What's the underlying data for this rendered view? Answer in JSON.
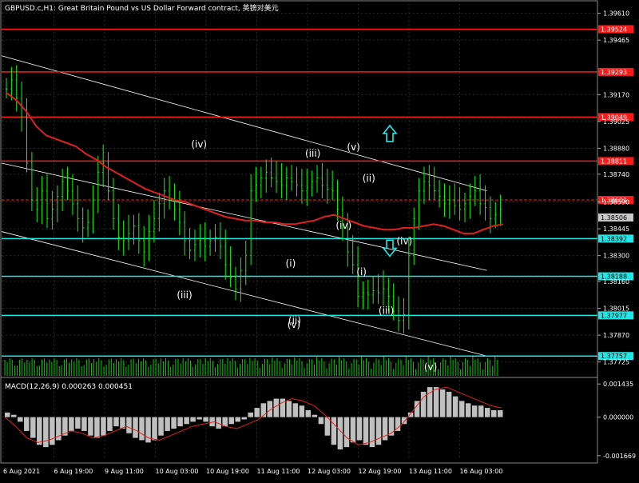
{
  "title": "GBPUSD.c,H1:  Great Britain Pound vs US Dollar Forward contract, 英镑对美元",
  "indicator_label": "MACD(12,26,9) 0.000263 0.000451",
  "colors": {
    "background": "#000000",
    "grid": "#2a2a2a",
    "axis_text": "#ffffff",
    "candle": "#00ff00",
    "ma": "#e02020",
    "channel": "#ffffff",
    "red_level": "#ff1a1a",
    "cyan_level": "#22e6e6",
    "macd_hist": "#c0c0c0",
    "macd_signal": "#e02020",
    "volume": "#00cc00",
    "current_price": "#c8c8c8"
  },
  "chart_data": {
    "type": "candlestick",
    "symbol": "GBPUSD.c",
    "timeframe": "H1",
    "ylim": [
      1.3765,
      1.3966
    ],
    "price_ticks": [
      "1.39610",
      "1.39465",
      "1.39170",
      "1.39025",
      "1.38880",
      "1.38740",
      "1.38590",
      "1.38445",
      "1.38300",
      "1.38160",
      "1.38015",
      "1.37870",
      "1.37725"
    ],
    "x_labels": [
      "6 Aug 2021",
      "6 Aug 19:00",
      "9 Aug 11:00",
      "10 Aug 03:00",
      "10 Aug 19:00",
      "11 Aug 11:00",
      "12 Aug 03:00",
      "12 Aug 19:00",
      "13 Aug 11:00",
      "16 Aug 03:00"
    ],
    "levels": [
      {
        "price": 1.39524,
        "label": "1.39524",
        "color": "red"
      },
      {
        "price": 1.39293,
        "label": "1.39293",
        "color": "red"
      },
      {
        "price": 1.39049,
        "label": "1.39049",
        "color": "red"
      },
      {
        "price": 1.38811,
        "label": "1.38811",
        "color": "red"
      },
      {
        "price": 1.38601,
        "label": "1.38601",
        "color": "red",
        "dashed": true
      },
      {
        "price": 1.38392,
        "label": "1.38392",
        "color": "cyan"
      },
      {
        "price": 1.38188,
        "label": "1.38188",
        "color": "cyan"
      },
      {
        "price": 1.37977,
        "label": "1.37977",
        "color": "cyan"
      },
      {
        "price": 1.37757,
        "label": "1.37757",
        "color": "cyan"
      }
    ],
    "current_price": {
      "price": 1.38506,
      "label": "1.38506"
    },
    "closes": [
      1.392,
      1.3925,
      1.3915,
      1.3905,
      1.388,
      1.386,
      1.3855,
      1.3865,
      1.385,
      1.3855,
      1.3862,
      1.387,
      1.3865,
      1.3858,
      1.385,
      1.3845,
      1.3848,
      1.386,
      1.3875,
      1.388,
      1.3865,
      1.385,
      1.384,
      1.3838,
      1.3842,
      1.3846,
      1.3838,
      1.3832,
      1.3843,
      1.385,
      1.3858,
      1.3865,
      1.386,
      1.3855,
      1.3848,
      1.3838,
      1.3833,
      1.3836,
      1.3838,
      1.3835,
      1.3838,
      1.384,
      1.3835,
      1.3825,
      1.3818,
      1.3812,
      1.3822,
      1.383,
      1.3865,
      1.3868,
      1.3872,
      1.3875,
      1.3872,
      1.387,
      1.3868,
      1.3872,
      1.387,
      1.3868,
      1.3865,
      1.3867,
      1.387,
      1.3872,
      1.3868,
      1.3866,
      1.3865,
      1.3855,
      1.3845,
      1.3832,
      1.3825,
      1.3808,
      1.381,
      1.3809,
      1.3811,
      1.381,
      1.3812,
      1.3808,
      1.38,
      1.3795,
      1.3798,
      1.383,
      1.385,
      1.3865,
      1.387,
      1.3868,
      1.3865,
      1.3862,
      1.3858,
      1.386,
      1.3857,
      1.3855,
      1.3858,
      1.3862,
      1.3865,
      1.3858,
      1.3856,
      1.385,
      1.3852,
      1.3855
    ],
    "ma": [
      1.3918,
      1.3914,
      1.3908,
      1.39,
      1.3895,
      1.3893,
      1.3891,
      1.3889,
      1.3885,
      1.3882,
      1.3878,
      1.3875,
      1.3872,
      1.3869,
      1.3866,
      1.3864,
      1.3862,
      1.386,
      1.3859,
      1.3857,
      1.3855,
      1.3853,
      1.3851,
      1.385,
      1.3849,
      1.3849,
      1.3848,
      1.3848,
      1.3847,
      1.3847,
      1.3848,
      1.3849,
      1.3851,
      1.3852,
      1.385,
      1.3848,
      1.3846,
      1.3845,
      1.3844,
      1.3844,
      1.3845,
      1.3845,
      1.3846,
      1.3847,
      1.3846,
      1.3844,
      1.3842,
      1.3842,
      1.3844,
      1.3846,
      1.3847
    ],
    "channel_lines": [
      {
        "x0": 0.0,
        "y0": 1.3938,
        "x1": 0.97,
        "y1": 1.3865
      },
      {
        "x0": 0.0,
        "y0": 1.388,
        "x1": 0.97,
        "y1": 1.3822
      },
      {
        "x0": 0.0,
        "y0": 1.3843,
        "x1": 0.97,
        "y1": 1.37757
      }
    ],
    "wave_labels": [
      {
        "text": "(iv)",
        "x": 0.545,
        "y": 1.38885
      },
      {
        "text": "(iii)",
        "x": 0.505,
        "y": 1.3807
      },
      {
        "text": "(iii)",
        "x": 0.858,
        "y": 1.38835
      },
      {
        "text": "(v)",
        "x": 0.97,
        "y": 1.3887
      },
      {
        "text": "(ii)",
        "x": 1.012,
        "y": 1.387
      },
      {
        "text": "(iv)",
        "x": 0.943,
        "y": 1.38445
      },
      {
        "text": "(i)",
        "x": 0.992,
        "y": 1.38195
      },
      {
        "text": "(i)",
        "x": 0.797,
        "y": 1.3824
      },
      {
        "text": "(ii)",
        "x": 0.808,
        "y": 1.3793
      },
      {
        "text": "(v)",
        "x": 0.806,
        "y": 1.3791
      },
      {
        "text": "(iv)",
        "x": 1.11,
        "y": 1.3836
      },
      {
        "text": "(iii)",
        "x": 1.06,
        "y": 1.37985
      },
      {
        "text": "(v)",
        "x": 1.182,
        "y": 1.3768
      }
    ],
    "arrows": [
      {
        "direction": "up",
        "x": 1.044,
        "y": 1.3896
      },
      {
        "direction": "down",
        "x": 1.044,
        "y": 1.3834
      }
    ],
    "macd": {
      "name": "MACD(12,26,9)",
      "main": 0.000263,
      "signal": 0.000451,
      "ylim": [
        -0.00185,
        0.00165
      ],
      "ticks": [
        "0.001435",
        "0.000000",
        "-0.001669"
      ],
      "histogram": [
        0.0002,
        0.0001,
        -0.0002,
        -0.0006,
        -0.0009,
        -0.0012,
        -0.0013,
        -0.0012,
        -0.001,
        -0.0008,
        -0.0006,
        -0.0005,
        -0.0006,
        -0.0008,
        -0.0009,
        -0.0008,
        -0.0006,
        -0.0004,
        -0.0005,
        -0.0007,
        -0.0009,
        -0.001,
        -0.0011,
        -0.001,
        -0.0008,
        -0.0006,
        -0.0005,
        -0.0004,
        -0.0003,
        -0.0002,
        -0.0001,
        -0.0002,
        -0.0004,
        -0.0005,
        -0.0004,
        -0.0003,
        -0.0002,
        -0.0001,
        0.0002,
        0.0004,
        0.0006,
        0.0007,
        0.0008,
        0.0008,
        0.0007,
        0.0006,
        0.0005,
        0.0003,
        0.0001,
        -0.0003,
        -0.0008,
        -0.0012,
        -0.0014,
        -0.0013,
        -0.0011,
        -0.001,
        -0.0012,
        -0.0013,
        -0.0012,
        -0.001,
        -0.0008,
        -0.0006,
        -0.0003,
        0.0002,
        0.0007,
        0.0011,
        0.0013,
        0.0013,
        0.0012,
        0.0011,
        0.0009,
        0.0007,
        0.0006,
        0.0005,
        0.0005,
        0.0004,
        0.0003,
        0.0003
      ],
      "signal_line": [
        0.0,
        -0.0004,
        -0.0009,
        -0.0011,
        -0.001,
        -0.0008,
        -0.0006,
        -0.0007,
        -0.0009,
        -0.0008,
        -0.0006,
        -0.0004,
        -0.0006,
        -0.0009,
        -0.001,
        -0.0008,
        -0.0006,
        -0.0004,
        -0.0003,
        -0.0002,
        -0.0004,
        -0.0005,
        -0.0003,
        -0.0001,
        0.0003,
        0.0006,
        0.0008,
        0.0007,
        0.0005,
        0.0001,
        -0.0004,
        -0.0009,
        -0.0012,
        -0.0011,
        -0.0009,
        -0.0007,
        -0.0003,
        0.0003,
        0.0009,
        0.0012,
        0.0013,
        0.0011,
        0.0009,
        0.0007,
        0.0005,
        0.0004
      ]
    }
  }
}
